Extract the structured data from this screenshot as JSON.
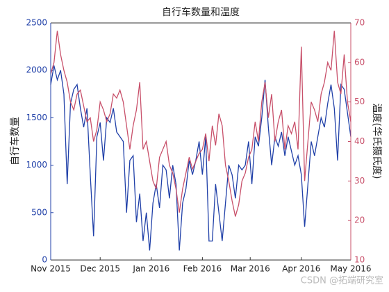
{
  "chart_data": {
    "type": "line",
    "title": "自行车数量和温度",
    "y_label": "自行车数量",
    "y2_label": "温度(华氏摄氏度)",
    "watermark": "CSDN @拓端研究室",
    "x": [
      0,
      2,
      4,
      6,
      8,
      10,
      12,
      14,
      16,
      18,
      20,
      22,
      24,
      26,
      28,
      30,
      32,
      34,
      36,
      38,
      40,
      42,
      44,
      46,
      48,
      50,
      52,
      54,
      56,
      58,
      60,
      62,
      64,
      66,
      68,
      70,
      72,
      74,
      76,
      78,
      80,
      82,
      84,
      86,
      88,
      90,
      92,
      94,
      96,
      98,
      100,
      102,
      104,
      106,
      108,
      110,
      112,
      114,
      116,
      118,
      120,
      122,
      124,
      126,
      128,
      130,
      132,
      134,
      136,
      138,
      140,
      142,
      144,
      146,
      148,
      150,
      152,
      154,
      156,
      158,
      160,
      162,
      164,
      166,
      168,
      170,
      172,
      174,
      176,
      178,
      180,
      182
    ],
    "xlim": [
      0,
      182
    ],
    "xticks": [
      {
        "value": 0,
        "label": "Nov 2015"
      },
      {
        "value": 30,
        "label": "Dec 2015"
      },
      {
        "value": 61,
        "label": "Jan 2016"
      },
      {
        "value": 92,
        "label": "Feb 2016"
      },
      {
        "value": 121,
        "label": "Mar 2016"
      },
      {
        "value": 152,
        "label": "Apr 2016"
      },
      {
        "value": 182,
        "label": "May 2016"
      }
    ],
    "ylim": [
      0,
      2500
    ],
    "yticks": [
      0,
      500,
      1000,
      1500,
      2000,
      2500
    ],
    "y2lim": [
      10,
      70
    ],
    "y2ticks": [
      10,
      20,
      30,
      40,
      50,
      60,
      70
    ],
    "series": [
      {
        "name": "自行车数量",
        "color": "#2040a8",
        "values": [
          1850,
          2050,
          1900,
          2000,
          1750,
          800,
          1650,
          1800,
          1850,
          1600,
          1400,
          1600,
          900,
          250,
          1300,
          1450,
          1050,
          1500,
          1450,
          1600,
          1350,
          1300,
          1250,
          500,
          1050,
          1100,
          400,
          700,
          200,
          500,
          100,
          600,
          800,
          550,
          1000,
          950,
          650,
          1000,
          800,
          100,
          600,
          750,
          1050,
          900,
          1050,
          1250,
          900,
          1300,
          200,
          200,
          800,
          500,
          200,
          600,
          1000,
          900,
          650,
          1000,
          950,
          1000,
          1250,
          800,
          1300,
          1200,
          1500,
          1900,
          1400,
          1000,
          1300,
          1200,
          1350,
          1100,
          1300,
          1150,
          1000,
          1100,
          900,
          350,
          800,
          1250,
          1100,
          1300,
          1500,
          1400,
          1650,
          1850,
          1600,
          1050,
          1850,
          1800,
          1550,
          1300
        ]
      },
      {
        "name": "温度",
        "color": "#c8506a",
        "axis": "y2",
        "values": [
          57,
          60,
          68,
          62,
          58,
          55,
          50,
          48,
          52,
          53,
          49,
          45,
          46,
          40,
          43,
          50,
          48,
          45,
          47,
          52,
          51,
          53,
          50,
          44,
          38,
          44,
          48,
          55,
          38,
          40,
          35,
          30,
          28,
          36,
          38,
          40,
          34,
          32,
          28,
          22,
          28,
          32,
          36,
          33,
          35,
          37,
          38,
          42,
          35,
          44,
          39,
          47,
          44,
          34,
          30,
          25,
          21,
          24,
          30,
          32,
          36,
          38,
          45,
          40,
          50,
          55,
          46,
          52,
          40,
          45,
          48,
          38,
          44,
          42,
          45,
          38,
          64,
          30,
          40,
          50,
          48,
          45,
          52,
          55,
          60,
          58,
          68,
          55,
          52,
          62,
          50,
          45
        ]
      }
    ]
  }
}
